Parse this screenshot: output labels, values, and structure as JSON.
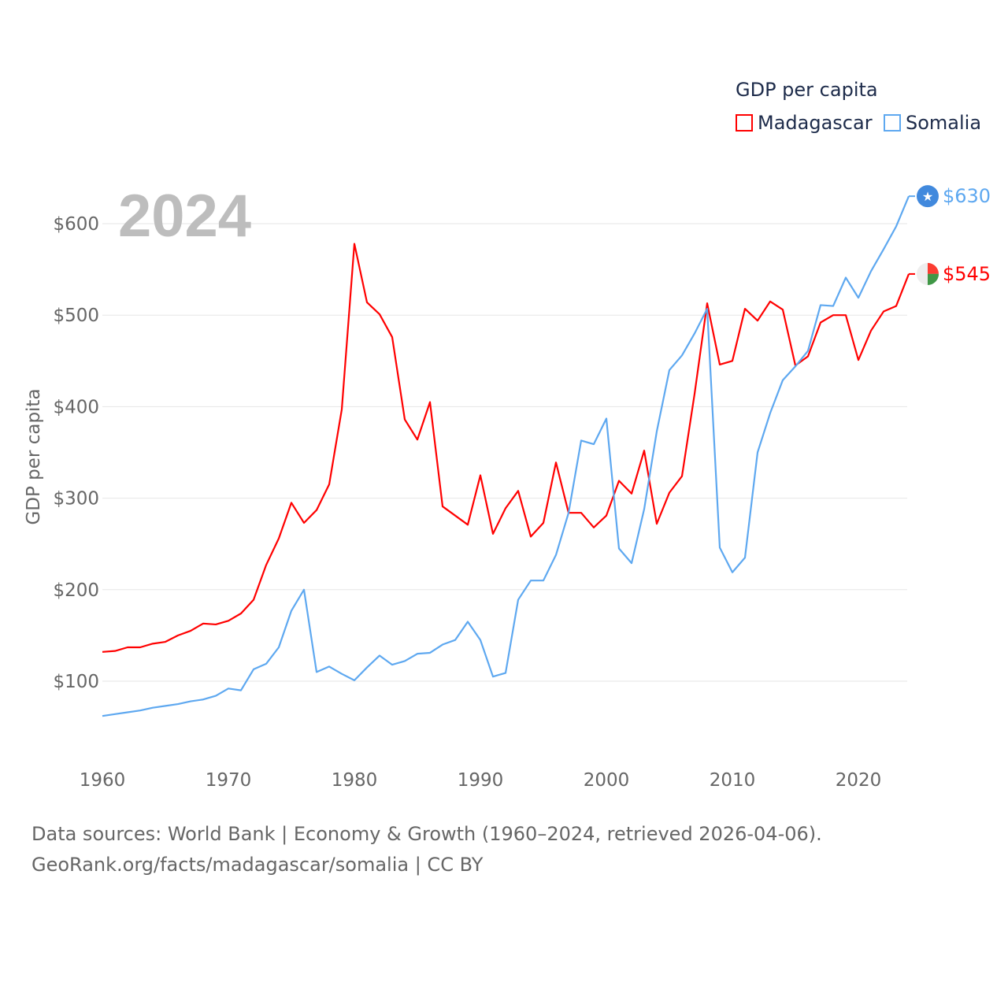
{
  "chart_data": {
    "type": "line",
    "title": "GDP per capita",
    "year_label": "2024",
    "xlabel": "",
    "ylabel": "GDP per capita",
    "xlim": [
      1960,
      2024
    ],
    "ylim": [
      55,
      640
    ],
    "x_ticks": [
      "1960",
      "1970",
      "1980",
      "1990",
      "2000",
      "2010",
      "2020"
    ],
    "y_ticks": [
      "$100",
      "$200",
      "$300",
      "$400",
      "$500",
      "$600"
    ],
    "y_tick_values": [
      100,
      200,
      300,
      400,
      500,
      600
    ],
    "grid": true,
    "legend_position": "top-right",
    "x": [
      1960,
      1961,
      1962,
      1963,
      1964,
      1965,
      1966,
      1967,
      1968,
      1969,
      1970,
      1971,
      1972,
      1973,
      1974,
      1975,
      1976,
      1977,
      1978,
      1979,
      1980,
      1981,
      1982,
      1983,
      1984,
      1985,
      1986,
      1987,
      1988,
      1989,
      1990,
      1991,
      1992,
      1993,
      1994,
      1995,
      1996,
      1997,
      1998,
      1999,
      2000,
      2001,
      2002,
      2003,
      2004,
      2005,
      2006,
      2007,
      2008,
      2009,
      2010,
      2011,
      2012,
      2013,
      2014,
      2015,
      2016,
      2017,
      2018,
      2019,
      2020,
      2021,
      2022,
      2023,
      2024
    ],
    "series": [
      {
        "name": "Madagascar",
        "color": "#ff0000",
        "end_label": "$545",
        "values": [
          132,
          133,
          137,
          137,
          141,
          143,
          150,
          155,
          163,
          162,
          166,
          174,
          189,
          227,
          256,
          295,
          273,
          287,
          315,
          397,
          578,
          514,
          501,
          476,
          386,
          364,
          405,
          291,
          281,
          271,
          325,
          261,
          289,
          308,
          258,
          273,
          339,
          284,
          284,
          268,
          281,
          319,
          305,
          352,
          272,
          306,
          324,
          414,
          513,
          446,
          450,
          507,
          494,
          515,
          506,
          445,
          455,
          492,
          500,
          500,
          451,
          483,
          504,
          510,
          545
        ]
      },
      {
        "name": "Somalia",
        "color": "#5ea8f0",
        "end_label": "$630",
        "values": [
          62,
          64,
          66,
          68,
          71,
          73,
          75,
          78,
          80,
          84,
          92,
          90,
          113,
          119,
          137,
          177,
          200,
          110,
          116,
          108,
          101,
          115,
          128,
          118,
          122,
          130,
          131,
          140,
          145,
          165,
          145,
          105,
          109,
          189,
          210,
          210,
          238,
          284,
          363,
          359,
          387,
          245,
          229,
          288,
          373,
          440,
          456,
          480,
          507,
          246,
          219,
          235,
          350,
          393,
          429,
          444,
          461,
          511,
          510,
          541,
          519,
          548,
          572,
          597,
          630
        ]
      }
    ]
  },
  "footer": {
    "line1": "Data sources: World Bank | Economy & Growth (1960–2024, retrieved 2026-04-06).",
    "line2": "GeoRank.org/facts/madagascar/somalia | CC BY"
  }
}
